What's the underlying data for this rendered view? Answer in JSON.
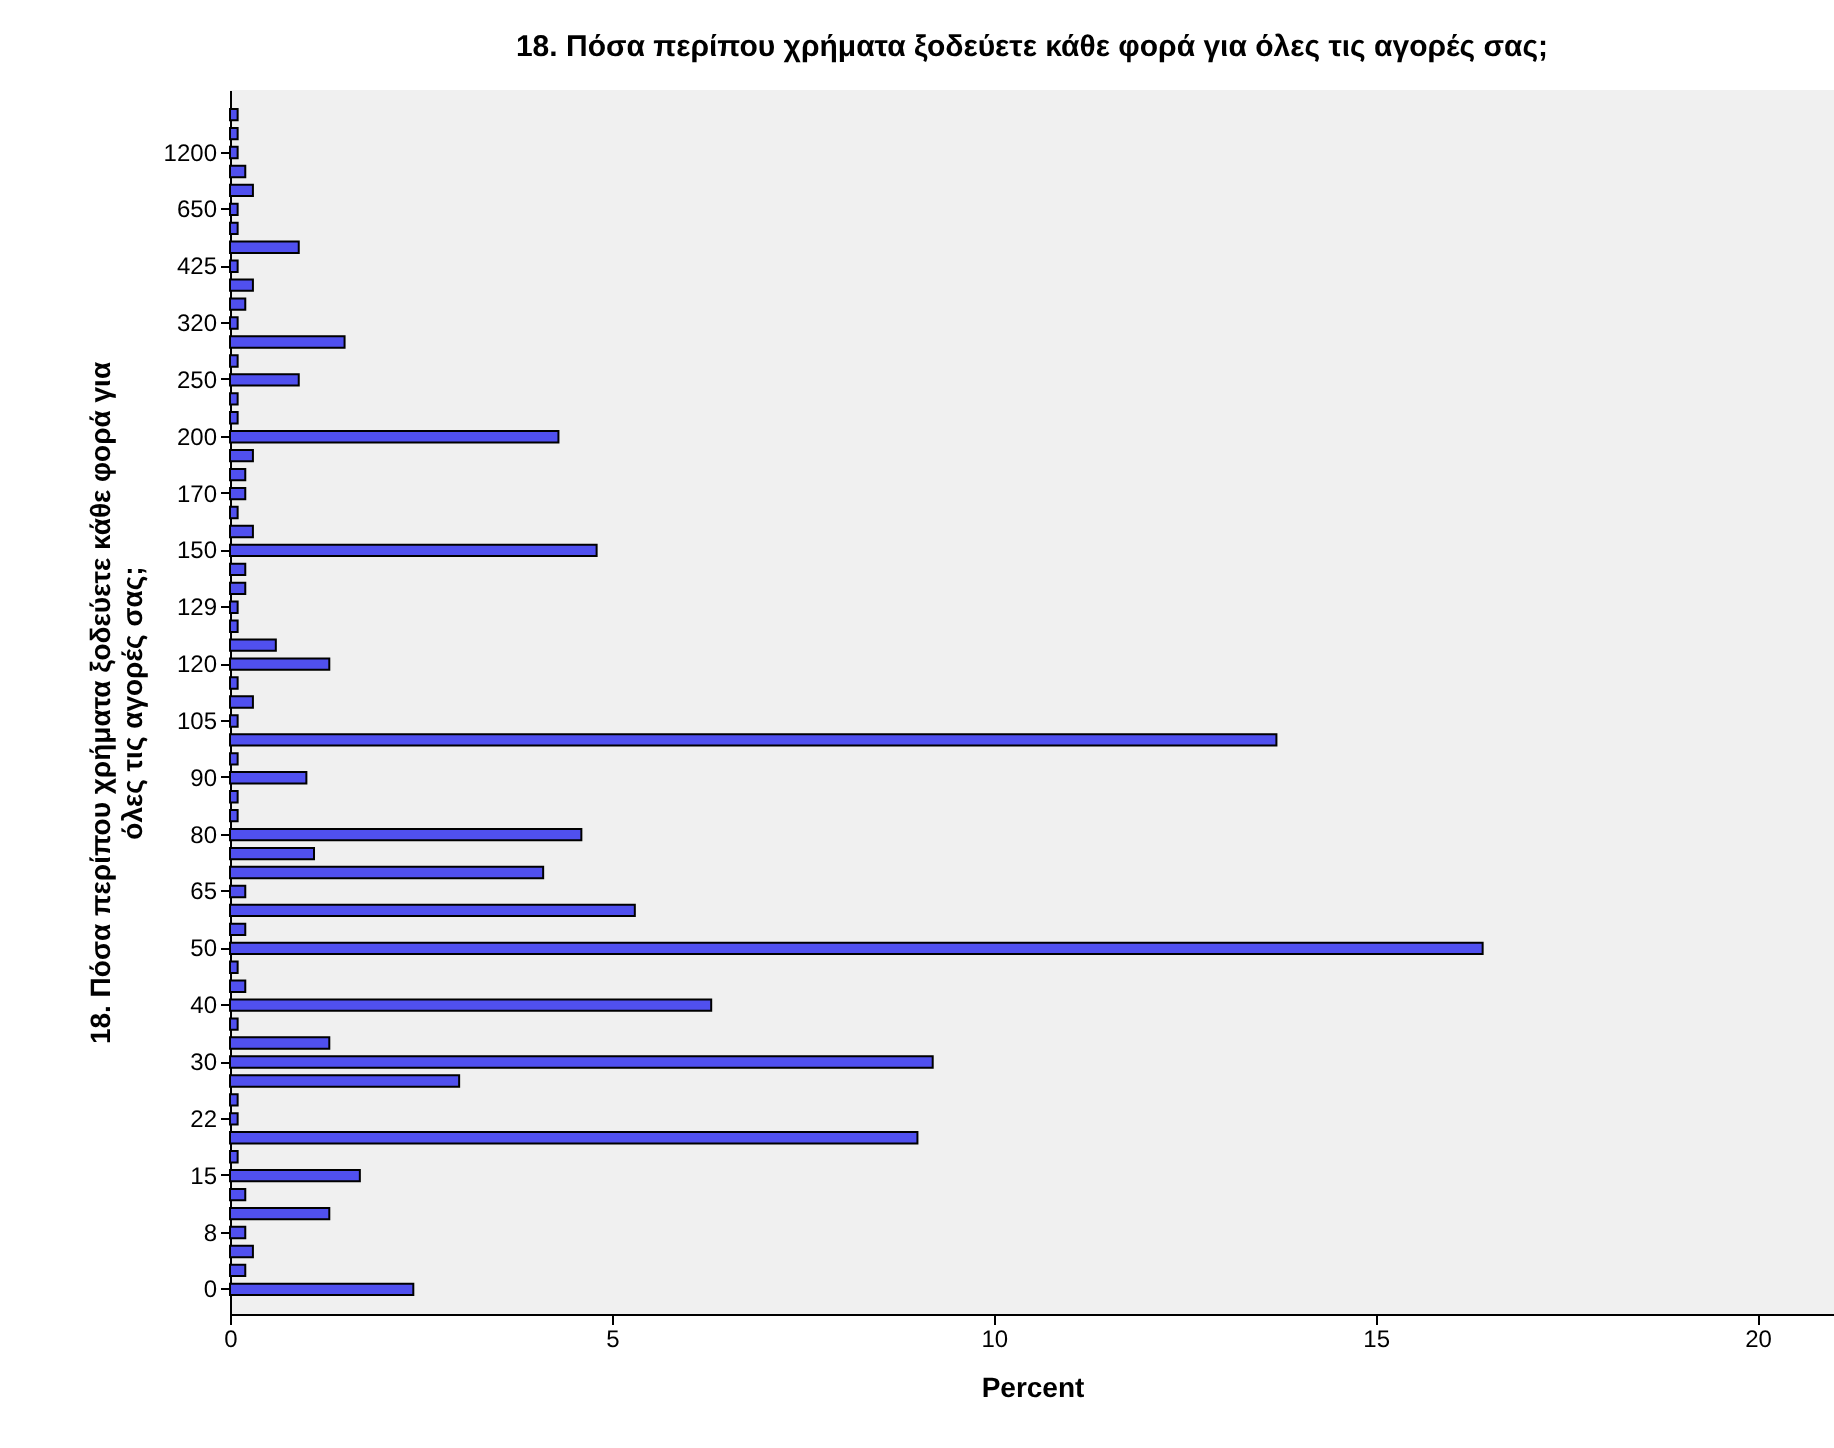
{
  "chart_data": {
    "type": "bar",
    "orientation": "horizontal",
    "title": "18. Πόσα περίπου χρήματα ξοδεύετε κάθε φορά για όλες τις αγορές σας;",
    "xlabel": "Percent",
    "ylabel": "18. Πόσα περίπου χρήματα ξοδεύετε κάθε φορά για όλες τις αγορές σας;",
    "categories": [
      null,
      null,
      "1200",
      null,
      null,
      "650",
      null,
      null,
      "425",
      null,
      null,
      "320",
      null,
      null,
      "250",
      null,
      null,
      "200",
      null,
      null,
      "170",
      null,
      null,
      "150",
      null,
      null,
      "129",
      null,
      null,
      "120",
      null,
      null,
      "105",
      null,
      null,
      "90",
      null,
      null,
      "80",
      null,
      null,
      "65",
      null,
      null,
      "50",
      null,
      null,
      "40",
      null,
      null,
      "30",
      null,
      null,
      "22",
      null,
      null,
      "15",
      null,
      null,
      "8",
      null,
      null,
      "0"
    ],
    "values": [
      0.1,
      0.1,
      0.1,
      0.2,
      0.3,
      0.1,
      0.1,
      0.9,
      0.1,
      0.3,
      0.2,
      0.1,
      1.5,
      0.1,
      0.9,
      0.1,
      0.1,
      4.3,
      0.3,
      0.2,
      0.2,
      0.1,
      0.3,
      4.8,
      0.2,
      0.2,
      0.1,
      0.1,
      0.6,
      1.3,
      0.1,
      0.3,
      0.1,
      13.7,
      0.1,
      1.0,
      0.1,
      0.1,
      4.6,
      1.1,
      4.1,
      0.2,
      5.3,
      0.2,
      16.4,
      0.1,
      0.2,
      6.3,
      0.1,
      1.3,
      9.2,
      3.0,
      0.1,
      0.1,
      9.0,
      0.1,
      1.7,
      0.2,
      1.3,
      0.2,
      0.3,
      0.2,
      2.4
    ],
    "color": "#5050ef",
    "xlim": [
      0,
      21
    ],
    "xticks": [
      0,
      5,
      10,
      15,
      20
    ],
    "grid": false
  }
}
